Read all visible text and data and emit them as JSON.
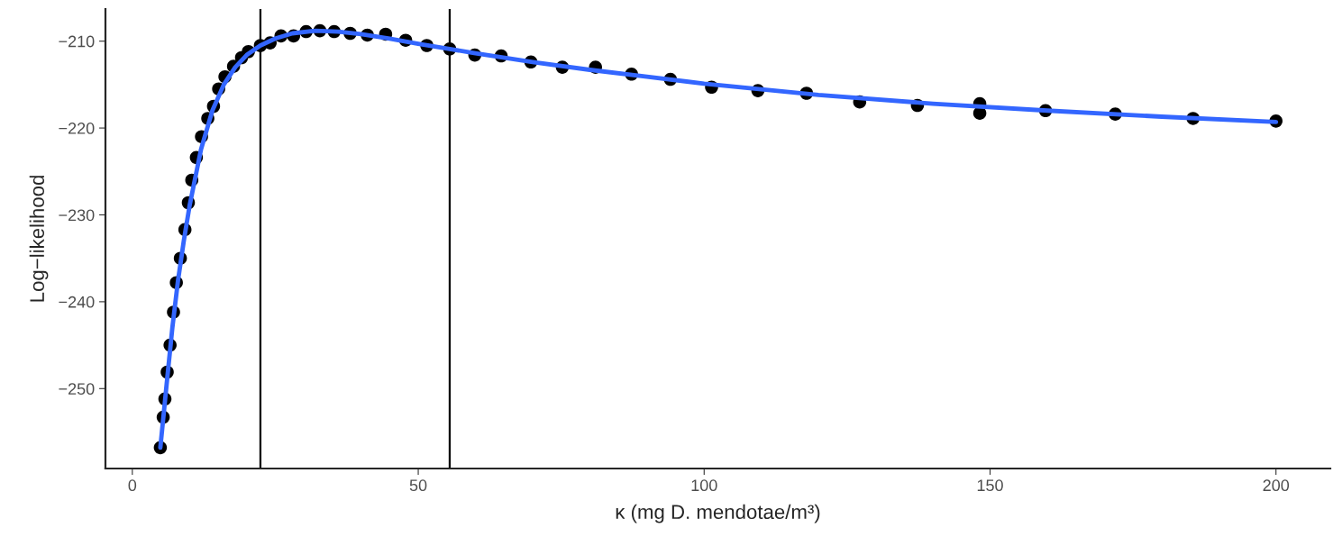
{
  "chart_data": {
    "type": "scatter",
    "xlabel": "κ (mg D. mendotae/m³)",
    "ylabel": "Log−likelihood",
    "xlim": [
      -4.7,
      209.5
    ],
    "ylim": [
      -259.2,
      -206.3
    ],
    "xticks": [
      0,
      50,
      100,
      150,
      200
    ],
    "yticks": [
      {
        "value": -210,
        "label": "−210"
      },
      {
        "value": -220,
        "label": "−220"
      },
      {
        "value": -230,
        "label": "−230"
      },
      {
        "value": -240,
        "label": "−240"
      },
      {
        "value": -250,
        "label": "−250"
      }
    ],
    "grid": false,
    "series": [
      {
        "marker": "circle",
        "color": "#000000",
        "x": [
          4.9,
          5.4,
          5.7,
          6.1,
          6.6,
          7.2,
          7.7,
          8.4,
          9.2,
          9.8,
          10.4,
          11.2,
          12.1,
          13.2,
          14.2,
          15.1,
          16.2,
          17.7,
          19.1,
          20.3,
          22.4,
          24.1,
          26.0,
          28.2,
          30.4,
          32.8,
          35.3,
          38.1,
          41.1,
          44.3,
          47.8,
          51.5,
          55.5,
          59.9,
          64.5,
          69.7,
          75.2,
          81.0,
          87.3,
          94.1,
          101.3,
          109.4,
          117.9,
          127.2,
          137.3,
          148.2,
          148.2,
          159.7,
          171.9,
          185.5,
          200
        ],
        "values": [
          -256.8,
          -253.3,
          -251.2,
          -248.1,
          -245.0,
          -241.2,
          -237.8,
          -235.0,
          -231.7,
          -228.6,
          -226.0,
          -223.4,
          -221.0,
          -218.9,
          -217.5,
          -215.5,
          -214.1,
          -212.9,
          -211.9,
          -211.2,
          -210.5,
          -210.2,
          -209.4,
          -209.4,
          -208.9,
          -208.8,
          -208.9,
          -209.1,
          -209.3,
          -209.2,
          -209.9,
          -210.5,
          -210.9,
          -211.6,
          -211.7,
          -212.4,
          -213.0,
          -213.0,
          -213.8,
          -214.4,
          -215.3,
          -215.7,
          -216.0,
          -217.0,
          -217.4,
          -217.2,
          -218.3,
          -218.0,
          -218.4,
          -218.9,
          -219.2
        ]
      },
      {
        "type": "line",
        "marker": "none",
        "color": "#3366ff",
        "line_style": "solid",
        "x": [
          4.9,
          6,
          7,
          8,
          9,
          10,
          12,
          14,
          16,
          18,
          20,
          22.4,
          25,
          28,
          32,
          36,
          40,
          45,
          50,
          55.5,
          60,
          70,
          80,
          90,
          100,
          120,
          140,
          160,
          180,
          200
        ],
        "values": [
          -256.8,
          -249.5,
          -243,
          -237.5,
          -233,
          -229,
          -222.5,
          -218,
          -215,
          -213,
          -211.6,
          -210.5,
          -209.7,
          -209.1,
          -208.8,
          -208.9,
          -209.2,
          -209.7,
          -210.3,
          -210.9,
          -211.4,
          -212.4,
          -213.3,
          -214.1,
          -214.9,
          -216.2,
          -217.2,
          -218.0,
          -218.7,
          -219.3
        ]
      }
    ],
    "ref_lines": [
      {
        "axis": "x",
        "value": 22.4,
        "color": "#000000",
        "line_style": "solid"
      },
      {
        "axis": "x",
        "value": 55.5,
        "color": "#000000",
        "line_style": "solid"
      }
    ]
  }
}
